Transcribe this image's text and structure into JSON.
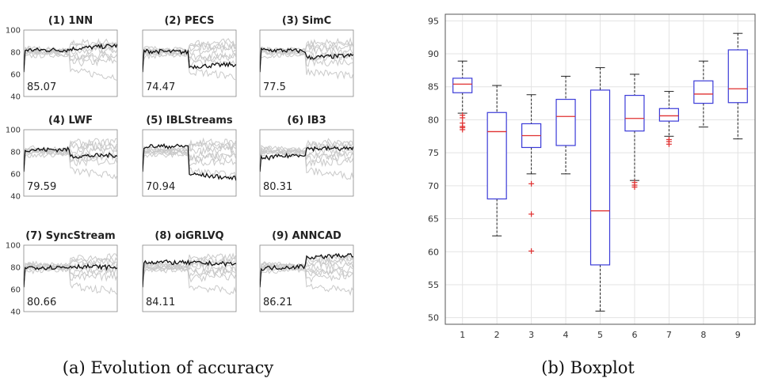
{
  "captions": {
    "left": "(a) Evolution of accuracy",
    "right": "(b) Boxplot"
  },
  "chart_data": [
    {
      "type": "line",
      "grid_title": "Evolution of accuracy",
      "ylim": [
        40,
        100
      ],
      "yticks": [
        "40",
        "60",
        "80",
        "100"
      ],
      "panels": [
        {
          "title": "(1) 1NN",
          "score": "85.07",
          "shape": [
            82,
            82,
            83,
            86
          ]
        },
        {
          "title": "(2) PECS",
          "score": "74.47",
          "shape": [
            81,
            80,
            67,
            69
          ]
        },
        {
          "title": "(3) SimC",
          "score": "77.5",
          "shape": [
            82,
            81,
            75,
            77
          ]
        },
        {
          "title": "(4) LWF",
          "score": "79.59",
          "shape": [
            82,
            82,
            76,
            77
          ]
        },
        {
          "title": "(5) IBLStreams",
          "score": "70.94",
          "shape": [
            85,
            85,
            60,
            56
          ]
        },
        {
          "title": "(6) IB3",
          "score": "80.31",
          "shape": [
            74,
            78,
            83,
            83
          ]
        },
        {
          "title": "(7) SyncStream",
          "score": "80.66",
          "shape": [
            80,
            80,
            81,
            80
          ]
        },
        {
          "title": "(8) oiGRLVQ",
          "score": "84.11",
          "shape": [
            85,
            84,
            84,
            83
          ]
        },
        {
          "title": "(9) ANNCAD",
          "score": "86.21",
          "shape": [
            79,
            81,
            89,
            91
          ]
        }
      ]
    },
    {
      "type": "boxplot",
      "title": "Boxplot",
      "categories": [
        "1",
        "2",
        "3",
        "4",
        "5",
        "6",
        "7",
        "8",
        "9"
      ],
      "ylim": [
        49,
        96
      ],
      "yticks": [
        50,
        55,
        60,
        65,
        70,
        75,
        80,
        85,
        90,
        95
      ],
      "boxes": [
        {
          "label": "1",
          "min": 81,
          "q1": 84.1,
          "median": 85.4,
          "q3": 86.3,
          "max": 88.9,
          "outliers": [
            80.7,
            80.3,
            79.5,
            79.0,
            78.8,
            78.5
          ]
        },
        {
          "label": "2",
          "min": 62.4,
          "q1": 68,
          "median": 78.2,
          "q3": 81.1,
          "max": 85.2,
          "outliers": []
        },
        {
          "label": "3",
          "min": 71.8,
          "q1": 75.8,
          "median": 77.6,
          "q3": 79.4,
          "max": 83.8,
          "outliers": [
            70.3,
            65.7,
            60.1
          ]
        },
        {
          "label": "4",
          "min": 71.8,
          "q1": 76.1,
          "median": 80.5,
          "q3": 83.1,
          "max": 86.6,
          "outliers": []
        },
        {
          "label": "5",
          "min": 51,
          "q1": 58,
          "median": 66.2,
          "q3": 84.5,
          "max": 87.9,
          "outliers": []
        },
        {
          "label": "6",
          "min": 70.8,
          "q1": 78.3,
          "median": 80.2,
          "q3": 83.7,
          "max": 86.9,
          "outliers": [
            70.5,
            70.1,
            69.8
          ]
        },
        {
          "label": "7",
          "min": 77.5,
          "q1": 79.8,
          "median": 80.6,
          "q3": 81.7,
          "max": 84.3,
          "outliers": [
            77.0,
            76.7,
            76.3
          ]
        },
        {
          "label": "8",
          "min": 78.9,
          "q1": 82.5,
          "median": 83.9,
          "q3": 85.9,
          "max": 88.9,
          "outliers": []
        },
        {
          "label": "9",
          "min": 77.1,
          "q1": 82.6,
          "median": 84.7,
          "q3": 90.6,
          "max": 93.1,
          "outliers": []
        }
      ],
      "colors": {
        "box": "#3b3bd8",
        "median": "#e03030",
        "outlier": "#e03030",
        "whisker": "#222222",
        "grid": "#e3e3e3"
      }
    }
  ]
}
